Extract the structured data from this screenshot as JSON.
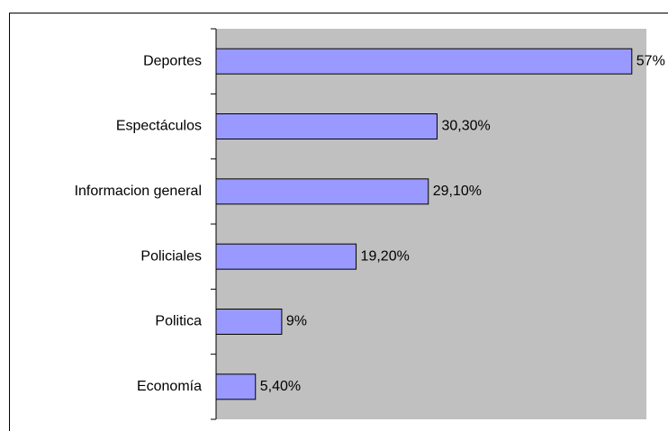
{
  "chart_data": {
    "type": "hbar",
    "categories": [
      "Deportes",
      "Espectáculos",
      "Informacion general",
      "Policiales",
      "Politica",
      "Economía"
    ],
    "values": [
      57,
      30.3,
      29.1,
      19.2,
      9,
      5.4
    ],
    "value_labels": [
      "57%",
      "30,30%",
      "29,10%",
      "19,20%",
      "9%",
      "5,40%"
    ],
    "color": "#9999ff",
    "xlim": [
      0,
      59
    ]
  }
}
